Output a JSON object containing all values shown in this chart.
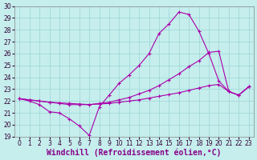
{
  "xlabel": "Windchill (Refroidissement éolien,°C)",
  "xlim": [
    -0.5,
    23.5
  ],
  "ylim": [
    19,
    30
  ],
  "xticks": [
    0,
    1,
    2,
    3,
    4,
    5,
    6,
    7,
    8,
    9,
    10,
    11,
    12,
    13,
    14,
    15,
    16,
    17,
    18,
    19,
    20,
    21,
    22,
    23
  ],
  "yticks": [
    19,
    20,
    21,
    22,
    23,
    24,
    25,
    26,
    27,
    28,
    29,
    30
  ],
  "background_color": "#c5eeed",
  "grid_color": "#9ed4d4",
  "line_color": "#aa00aa",
  "line1_x": [
    0,
    1,
    2,
    3,
    4,
    5,
    6,
    7,
    8,
    9,
    10,
    11,
    12,
    13,
    14,
    15,
    16,
    17,
    18,
    19,
    20,
    21,
    22,
    23
  ],
  "line1_y": [
    22.2,
    22.0,
    21.7,
    21.1,
    21.0,
    20.5,
    19.9,
    19.1,
    21.5,
    22.5,
    23.5,
    24.2,
    25.0,
    26.0,
    27.7,
    28.5,
    29.5,
    29.3,
    27.9,
    26.0,
    23.7,
    22.8,
    22.5,
    23.2
  ],
  "line2_x": [
    0,
    1,
    2,
    3,
    4,
    5,
    6,
    7,
    8,
    9,
    10,
    11,
    12,
    13,
    14,
    15,
    16,
    17,
    18,
    19,
    20,
    21,
    22,
    23
  ],
  "line2_y": [
    22.2,
    22.1,
    22.0,
    21.9,
    21.8,
    21.7,
    21.7,
    21.7,
    21.8,
    21.9,
    22.1,
    22.3,
    22.6,
    22.9,
    23.3,
    23.8,
    24.3,
    24.9,
    25.4,
    26.1,
    26.2,
    22.8,
    22.5,
    23.2
  ],
  "line3_x": [
    0,
    1,
    2,
    3,
    4,
    5,
    6,
    7,
    8,
    9,
    10,
    11,
    12,
    13,
    14,
    15,
    16,
    17,
    18,
    19,
    20,
    21,
    22,
    23
  ],
  "line3_y": [
    22.2,
    22.1,
    22.0,
    21.9,
    21.85,
    21.8,
    21.75,
    21.7,
    21.75,
    21.8,
    21.9,
    22.0,
    22.1,
    22.25,
    22.4,
    22.55,
    22.7,
    22.9,
    23.1,
    23.3,
    23.4,
    22.8,
    22.5,
    23.2
  ],
  "marker": "+",
  "markersize": 3,
  "linewidth": 0.8,
  "tick_fontsize": 5.5,
  "label_fontsize": 7
}
